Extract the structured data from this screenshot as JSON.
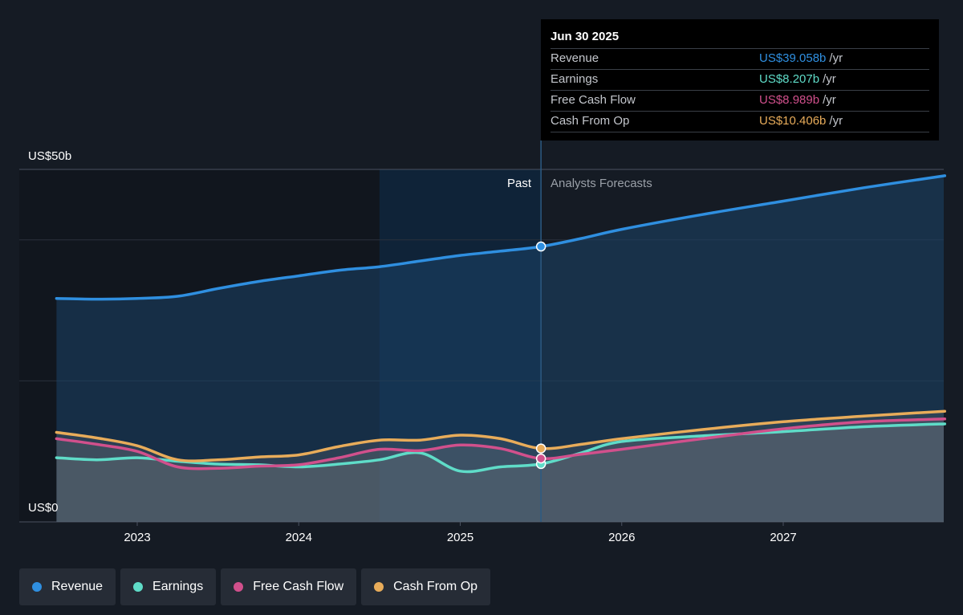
{
  "tooltip": {
    "date": "Jun 30 2025",
    "rows": [
      {
        "label": "Revenue",
        "value": "US$39.058b",
        "unit": "/yr",
        "color": "#2f8fe0"
      },
      {
        "label": "Earnings",
        "value": "US$8.207b",
        "unit": "/yr",
        "color": "#5fdcc8"
      },
      {
        "label": "Free Cash Flow",
        "value": "US$8.989b",
        "unit": "/yr",
        "color": "#d1508c"
      },
      {
        "label": "Cash From Op",
        "value": "US$10.406b",
        "unit": "/yr",
        "color": "#e8ac5a"
      }
    ]
  },
  "legend": [
    {
      "label": "Revenue",
      "color": "#2f8fe0"
    },
    {
      "label": "Earnings",
      "color": "#5fdcc8"
    },
    {
      "label": "Free Cash Flow",
      "color": "#d1508c"
    },
    {
      "label": "Cash From Op",
      "color": "#e8ac5a"
    }
  ],
  "chart_data": {
    "type": "line",
    "y_top_label": "US$50b",
    "y_bottom_label": "US$0",
    "ylim": [
      0,
      50
    ],
    "xlim": [
      2022.5,
      2028.0
    ],
    "x_ticks": [
      {
        "label": "2023",
        "value": 2023.0
      },
      {
        "label": "2024",
        "value": 2024.0
      },
      {
        "label": "2025",
        "value": 2025.0
      },
      {
        "label": "2026",
        "value": 2026.0
      },
      {
        "label": "2027",
        "value": 2027.0
      }
    ],
    "gridlines": [
      50,
      40,
      20
    ],
    "past_label": "Past",
    "forecast_label": "Analysts Forecasts",
    "divider_x": 2025.5,
    "highlight_start_x": 2024.5,
    "series": [
      {
        "name": "Revenue",
        "color": "#2f8fe0",
        "points": [
          [
            2022.5,
            31.7
          ],
          [
            2022.75,
            31.6
          ],
          [
            2023.0,
            31.7
          ],
          [
            2023.25,
            32.0
          ],
          [
            2023.5,
            33.1
          ],
          [
            2023.75,
            34.1
          ],
          [
            2024.0,
            34.9
          ],
          [
            2024.25,
            35.7
          ],
          [
            2024.5,
            36.2
          ],
          [
            2024.75,
            37.0
          ],
          [
            2025.0,
            37.8
          ],
          [
            2025.25,
            38.4
          ],
          [
            2025.5,
            39.06
          ],
          [
            2025.75,
            40.2
          ],
          [
            2026.0,
            41.5
          ],
          [
            2026.5,
            43.6
          ],
          [
            2027.0,
            45.5
          ],
          [
            2027.5,
            47.4
          ],
          [
            2028.0,
            49.1
          ]
        ]
      },
      {
        "name": "Earnings",
        "color": "#5fdcc8",
        "points": [
          [
            2022.5,
            9.1
          ],
          [
            2022.75,
            8.8
          ],
          [
            2023.0,
            9.1
          ],
          [
            2023.25,
            8.6
          ],
          [
            2023.5,
            8.2
          ],
          [
            2023.75,
            8.1
          ],
          [
            2024.0,
            7.8
          ],
          [
            2024.25,
            8.2
          ],
          [
            2024.5,
            8.8
          ],
          [
            2024.75,
            9.8
          ],
          [
            2025.0,
            7.2
          ],
          [
            2025.25,
            7.8
          ],
          [
            2025.5,
            8.21
          ],
          [
            2025.75,
            9.8
          ],
          [
            2026.0,
            11.4
          ],
          [
            2026.5,
            12.2
          ],
          [
            2027.0,
            12.8
          ],
          [
            2027.5,
            13.5
          ],
          [
            2028.0,
            13.9
          ]
        ]
      },
      {
        "name": "Free Cash Flow",
        "color": "#d1508c",
        "points": [
          [
            2022.5,
            11.8
          ],
          [
            2022.75,
            11.0
          ],
          [
            2023.0,
            10.0
          ],
          [
            2023.25,
            7.8
          ],
          [
            2023.5,
            7.6
          ],
          [
            2023.75,
            7.9
          ],
          [
            2024.0,
            8.1
          ],
          [
            2024.25,
            9.1
          ],
          [
            2024.5,
            10.3
          ],
          [
            2024.75,
            10.1
          ],
          [
            2025.0,
            10.9
          ],
          [
            2025.25,
            10.4
          ],
          [
            2025.5,
            8.99
          ],
          [
            2025.75,
            9.6
          ],
          [
            2026.0,
            10.3
          ],
          [
            2026.5,
            11.8
          ],
          [
            2027.0,
            13.2
          ],
          [
            2027.5,
            14.2
          ],
          [
            2028.0,
            14.6
          ]
        ]
      },
      {
        "name": "Cash From Op",
        "color": "#e8ac5a",
        "points": [
          [
            2022.5,
            12.7
          ],
          [
            2022.75,
            11.9
          ],
          [
            2023.0,
            10.8
          ],
          [
            2023.25,
            8.8
          ],
          [
            2023.5,
            8.8
          ],
          [
            2023.75,
            9.2
          ],
          [
            2024.0,
            9.5
          ],
          [
            2024.25,
            10.7
          ],
          [
            2024.5,
            11.6
          ],
          [
            2024.75,
            11.6
          ],
          [
            2025.0,
            12.3
          ],
          [
            2025.25,
            11.8
          ],
          [
            2025.5,
            10.41
          ],
          [
            2025.75,
            11.0
          ],
          [
            2026.0,
            11.8
          ],
          [
            2026.5,
            13.1
          ],
          [
            2027.0,
            14.2
          ],
          [
            2027.5,
            15.0
          ],
          [
            2028.0,
            15.7
          ]
        ]
      }
    ]
  }
}
